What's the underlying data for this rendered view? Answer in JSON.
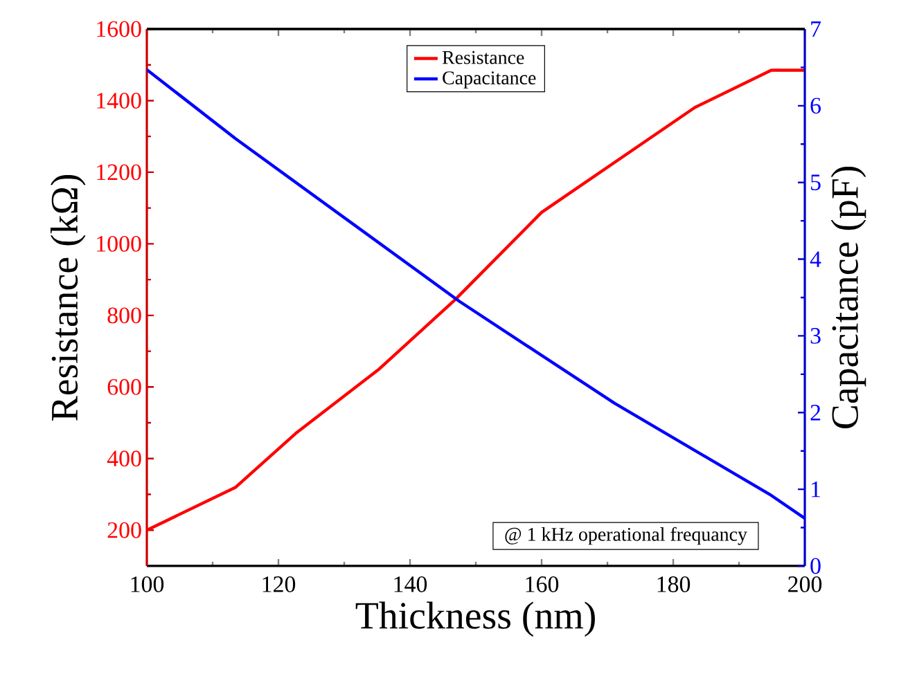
{
  "chart_data": {
    "type": "line",
    "xlabel": "Thickness (nm)",
    "ylabel": "Resistance (kΩ)",
    "y2label": "Capacitance (pF)",
    "x": [
      100,
      113.5,
      122.6,
      135.3,
      146.8,
      160,
      183.3,
      194.9,
      200
    ],
    "series": [
      {
        "name": "Resistance",
        "color": "#ff0000",
        "values": [
          200,
          320,
          470,
          650,
          843,
          1088,
          1381,
          1485,
          1485
        ],
        "axis": "y"
      },
      {
        "name": "Capacitance",
        "color": "#0000ff",
        "x": [
          100,
          113.5,
          147.5,
          171.1,
          194.9,
          200
        ],
        "values": [
          6.47,
          5.57,
          3.45,
          2.12,
          0.92,
          0.62
        ],
        "axis": "y2"
      }
    ],
    "xlim": [
      100,
      200
    ],
    "xticks": [
      100,
      120,
      140,
      160,
      180,
      200
    ],
    "ylim": [
      100,
      1600
    ],
    "yticks": [
      200,
      400,
      600,
      800,
      1000,
      1200,
      1400,
      1600
    ],
    "y2lim": [
      0,
      7
    ],
    "y2ticks": [
      0,
      1,
      2,
      3,
      4,
      5,
      6,
      7
    ],
    "legend": "top",
    "grid": false,
    "marker": "none",
    "line_style": "solid",
    "annotations": [
      "@ 1 kHz operational frequancy"
    ]
  }
}
